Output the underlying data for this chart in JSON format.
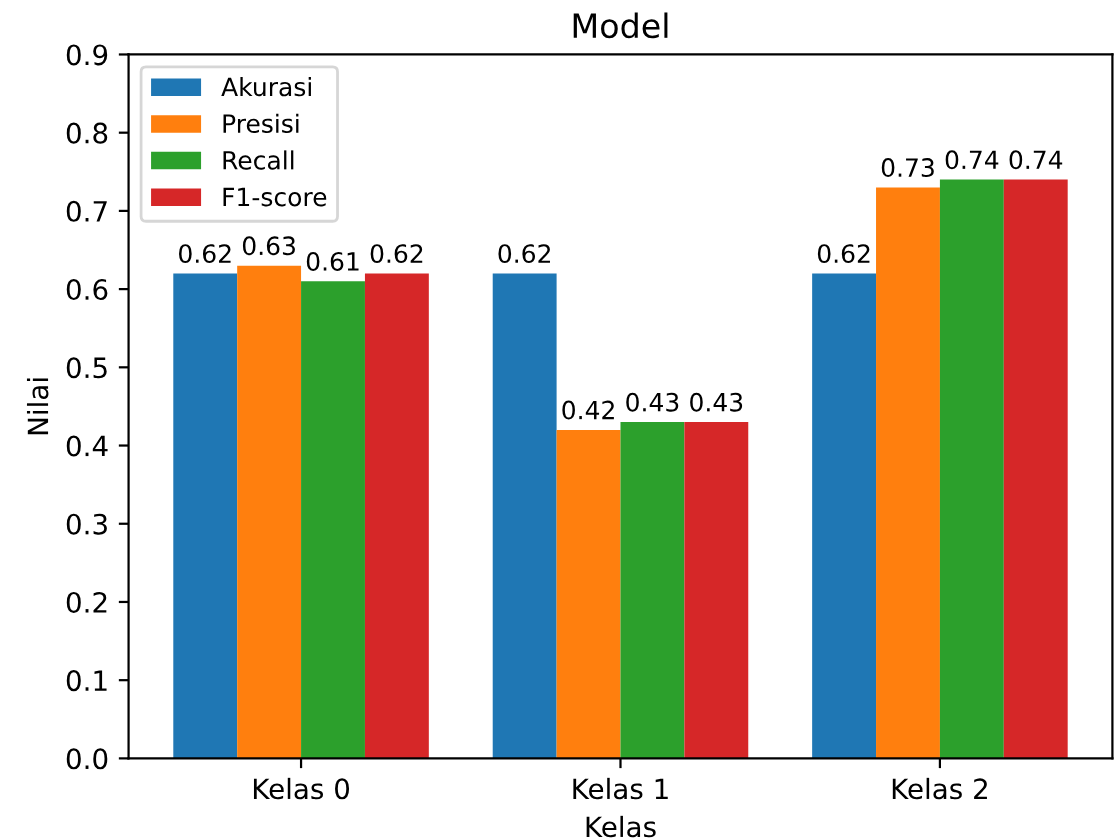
{
  "chart_data": {
    "type": "bar",
    "title": "Model",
    "xlabel": "Kelas",
    "ylabel": "Nilai",
    "categories": [
      "Kelas 0",
      "Kelas 1",
      "Kelas 2"
    ],
    "series": [
      {
        "name": "Akurasi",
        "color": "#1f77b4",
        "values": [
          0.62,
          0.62,
          0.62
        ]
      },
      {
        "name": "Presisi",
        "color": "#ff7f0e",
        "values": [
          0.63,
          0.42,
          0.73
        ]
      },
      {
        "name": "Recall",
        "color": "#2ca02c",
        "values": [
          0.61,
          0.43,
          0.74
        ]
      },
      {
        "name": "F1-score",
        "color": "#d62728",
        "values": [
          0.62,
          0.43,
          0.74
        ]
      }
    ],
    "ylim": [
      0,
      0.9
    ],
    "yticks": [
      {
        "value": 0,
        "label": "0.0"
      },
      {
        "value": 0.1,
        "label": "0.1"
      },
      {
        "value": 0.2,
        "label": "0.2"
      },
      {
        "value": 0.3,
        "label": "0.3"
      },
      {
        "value": 0.4,
        "label": "0.4"
      },
      {
        "value": 0.5,
        "label": "0.5"
      },
      {
        "value": 0.6,
        "label": "0.6"
      },
      {
        "value": 0.7,
        "label": "0.7"
      },
      {
        "value": 0.8,
        "label": "0.8"
      },
      {
        "value": 0.9,
        "label": "0.9"
      }
    ],
    "data_labels": true,
    "legend": "top left",
    "grid": false
  }
}
